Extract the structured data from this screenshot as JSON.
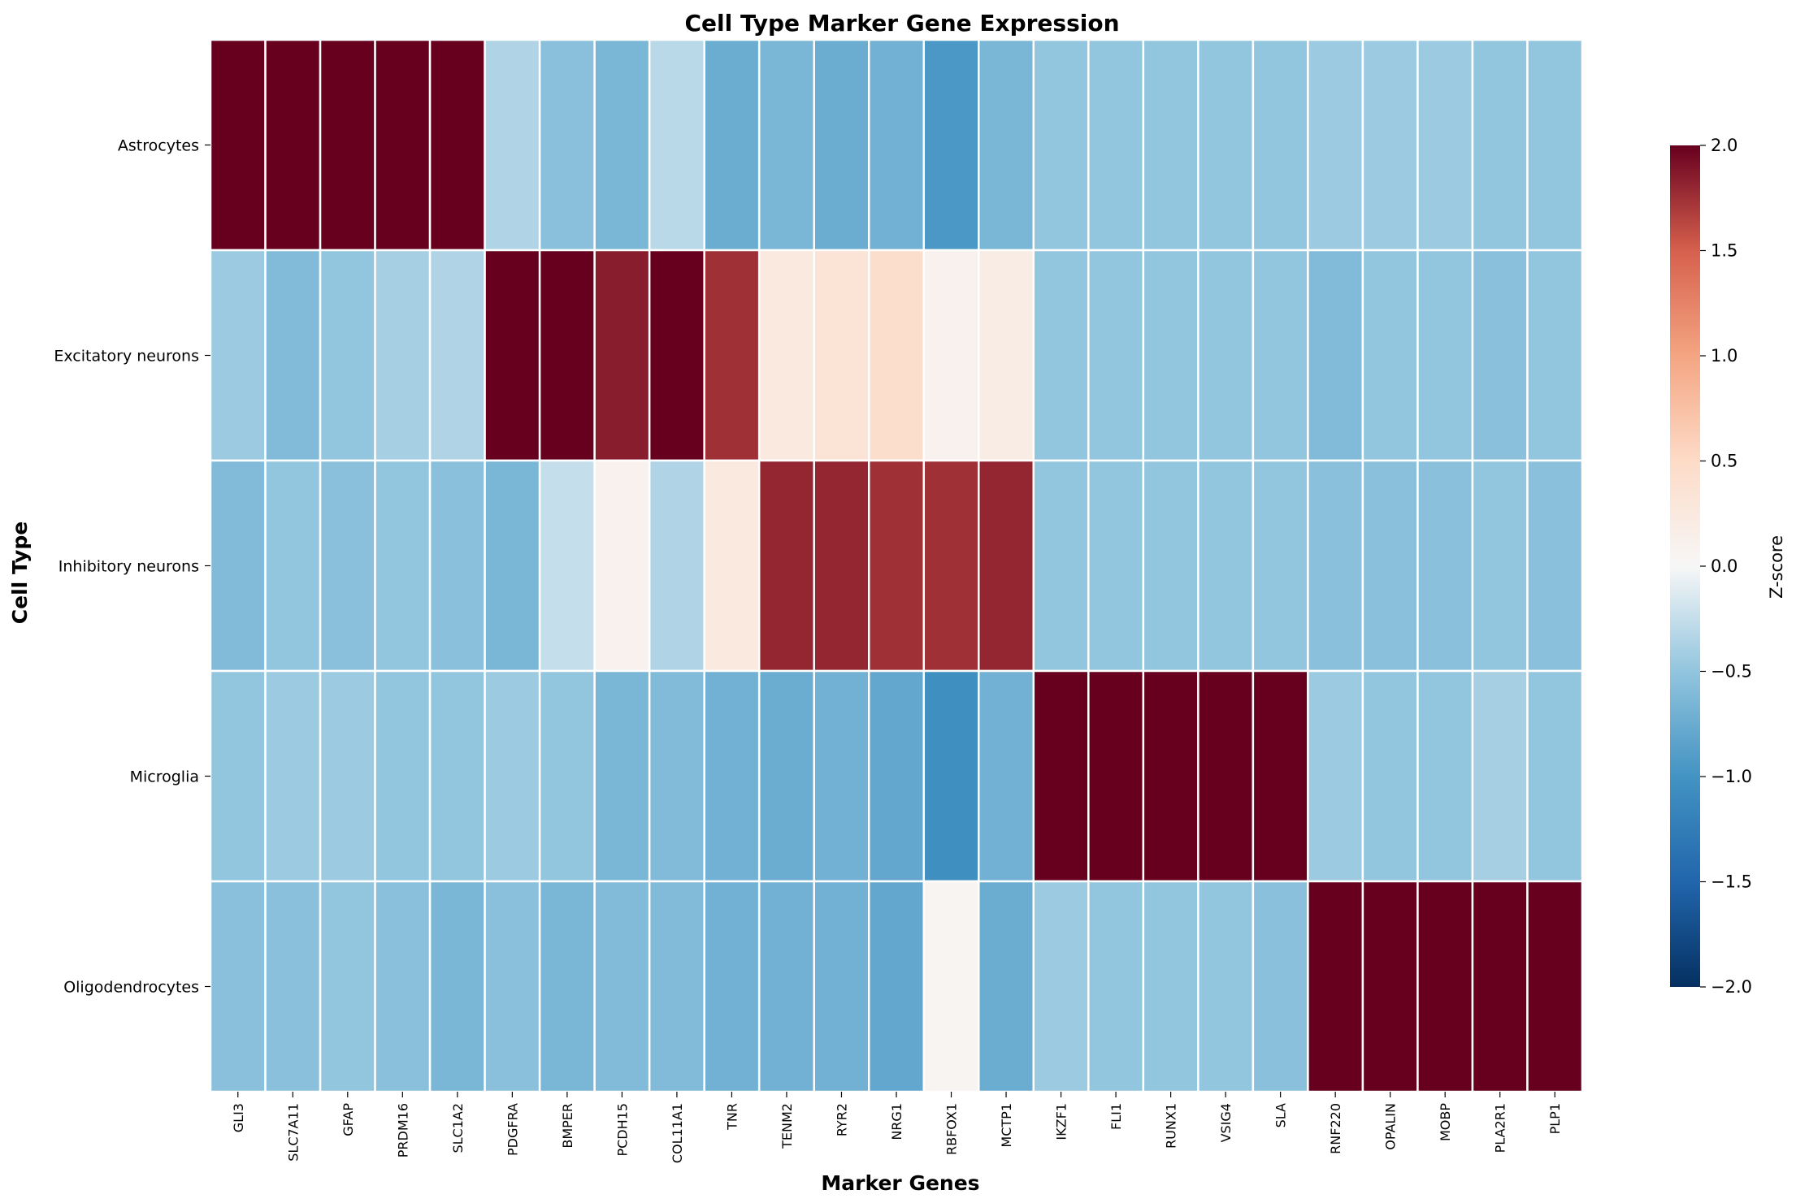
{
  "chart_data": {
    "type": "heatmap",
    "title": "Cell Type Marker Gene Expression",
    "xlabel": "Marker Genes",
    "ylabel": "Cell Type",
    "colorbar_label": "Z-score",
    "colormap": "RdBu_r",
    "vmin": -2.0,
    "vmax": 2.0,
    "colorbar_ticks": [
      "−2.0",
      "−1.5",
      "−1.0",
      "−0.5",
      "0.0",
      "0.5",
      "1.0",
      "1.5",
      "2.0"
    ],
    "rows": [
      "Astrocytes",
      "Excitatory neurons",
      "Inhibitory neurons",
      "Microglia",
      "Oligodendrocytes"
    ],
    "columns": [
      "GLI3",
      "SLC7A11",
      "GFAP",
      "PRDM16",
      "SLC1A2",
      "PDGFRA",
      "BMPER",
      "PCDH15",
      "COL11A1",
      "TNR",
      "TENM2",
      "RYR2",
      "NRG1",
      "RBFOX1",
      "MCTP1",
      "IKZF1",
      "FLI1",
      "RUNX1",
      "VSIG4",
      "SLA",
      "RNF220",
      "OPALIN",
      "MOBP",
      "PLA2R1",
      "PLP1"
    ],
    "values": [
      [
        2.0,
        2.0,
        2.0,
        2.0,
        2.0,
        -0.35,
        -0.55,
        -0.65,
        -0.3,
        -0.75,
        -0.65,
        -0.75,
        -0.7,
        -0.95,
        -0.65,
        -0.5,
        -0.5,
        -0.5,
        -0.5,
        -0.5,
        -0.45,
        -0.45,
        -0.45,
        -0.5,
        -0.5
      ],
      [
        -0.45,
        -0.6,
        -0.5,
        -0.4,
        -0.35,
        2.0,
        2.0,
        1.85,
        2.0,
        1.75,
        0.25,
        0.35,
        0.45,
        0.1,
        0.2,
        -0.5,
        -0.5,
        -0.5,
        -0.5,
        -0.5,
        -0.6,
        -0.5,
        -0.5,
        -0.55,
        -0.5
      ],
      [
        -0.6,
        -0.5,
        -0.55,
        -0.5,
        -0.55,
        -0.65,
        -0.25,
        0.1,
        -0.35,
        0.25,
        1.8,
        1.8,
        1.75,
        1.75,
        1.8,
        -0.5,
        -0.5,
        -0.5,
        -0.5,
        -0.5,
        -0.55,
        -0.55,
        -0.55,
        -0.5,
        -0.55
      ],
      [
        -0.5,
        -0.45,
        -0.45,
        -0.5,
        -0.5,
        -0.45,
        -0.5,
        -0.65,
        -0.6,
        -0.7,
        -0.75,
        -0.7,
        -0.8,
        -1.05,
        -0.7,
        2.0,
        2.0,
        2.0,
        2.0,
        2.0,
        -0.45,
        -0.5,
        -0.5,
        -0.4,
        -0.5
      ],
      [
        -0.55,
        -0.55,
        -0.5,
        -0.55,
        -0.65,
        -0.55,
        -0.65,
        -0.6,
        -0.6,
        -0.7,
        -0.7,
        -0.7,
        -0.8,
        0.05,
        -0.75,
        -0.45,
        -0.5,
        -0.5,
        -0.5,
        -0.55,
        2.0,
        2.0,
        2.0,
        2.0,
        2.0
      ]
    ]
  }
}
